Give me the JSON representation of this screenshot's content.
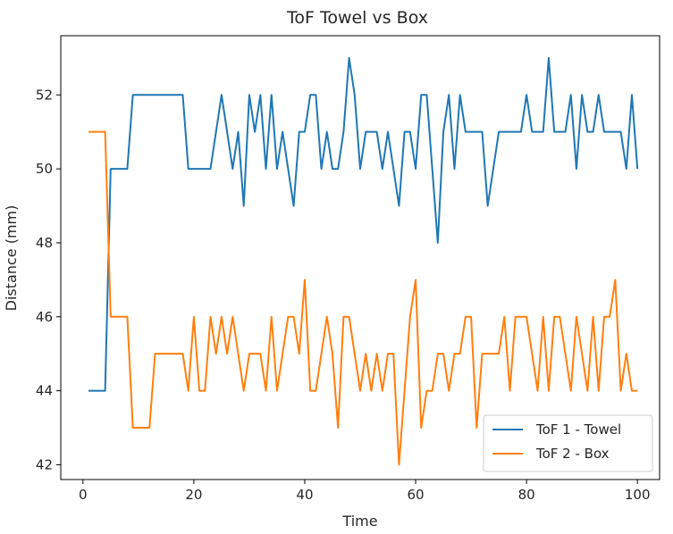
{
  "chart_data": {
    "type": "line",
    "title": "ToF Towel vs Box",
    "xlabel": "Time",
    "ylabel": "Distance (mm)",
    "xlim": [
      -4,
      104
    ],
    "ylim": [
      41.6,
      53.6
    ],
    "xticks": [
      0,
      20,
      40,
      60,
      80,
      100
    ],
    "yticks": [
      42,
      44,
      46,
      48,
      50,
      52
    ],
    "grid": false,
    "legend_position": "lower-right",
    "x": [
      1,
      2,
      3,
      4,
      5,
      6,
      7,
      8,
      9,
      10,
      11,
      12,
      13,
      14,
      15,
      16,
      17,
      18,
      19,
      20,
      21,
      22,
      23,
      24,
      25,
      26,
      27,
      28,
      29,
      30,
      31,
      32,
      33,
      34,
      35,
      36,
      37,
      38,
      39,
      40,
      41,
      42,
      43,
      44,
      45,
      46,
      47,
      48,
      49,
      50,
      51,
      52,
      53,
      54,
      55,
      56,
      57,
      58,
      59,
      60,
      61,
      62,
      63,
      64,
      65,
      66,
      67,
      68,
      69,
      70,
      71,
      72,
      73,
      74,
      75,
      76,
      77,
      78,
      79,
      80,
      81,
      82,
      83,
      84,
      85,
      86,
      87,
      88,
      89,
      90,
      91,
      92,
      93,
      94,
      95,
      96,
      97,
      98,
      99,
      100
    ],
    "series": [
      {
        "name": "ToF 1 - Towel",
        "color": "#1f77b4",
        "values": [
          44,
          44,
          44,
          44,
          50,
          50,
          50,
          50,
          52,
          52,
          52,
          52,
          52,
          52,
          52,
          52,
          52,
          52,
          50,
          50,
          50,
          50,
          50,
          51,
          52,
          51,
          50,
          51,
          49,
          52,
          51,
          52,
          50,
          52,
          50,
          51,
          50,
          49,
          51,
          51,
          52,
          52,
          50,
          51,
          50,
          50,
          51,
          53,
          52,
          50,
          51,
          51,
          51,
          50,
          51,
          50,
          49,
          51,
          51,
          50,
          52,
          52,
          50,
          48,
          51,
          52,
          50,
          52,
          51,
          51,
          51,
          51,
          49,
          50,
          51,
          51,
          51,
          51,
          51,
          52,
          51,
          51,
          51,
          53,
          51,
          51,
          51,
          52,
          50,
          52,
          51,
          51,
          52,
          51,
          51,
          51,
          51,
          50,
          52,
          50
        ]
      },
      {
        "name": "ToF 2 - Box",
        "color": "#ff7f0e",
        "values": [
          51,
          51,
          51,
          51,
          46,
          46,
          46,
          46,
          43,
          43,
          43,
          43,
          45,
          45,
          45,
          45,
          45,
          45,
          44,
          46,
          44,
          44,
          46,
          45,
          46,
          45,
          46,
          45,
          44,
          45,
          45,
          45,
          44,
          46,
          44,
          45,
          46,
          46,
          45,
          47,
          44,
          44,
          45,
          46,
          45,
          43,
          46,
          46,
          45,
          44,
          45,
          44,
          45,
          44,
          45,
          45,
          42,
          44,
          46,
          47,
          43,
          44,
          44,
          45,
          45,
          44,
          45,
          45,
          46,
          46,
          43,
          45,
          45,
          45,
          45,
          46,
          44,
          46,
          46,
          46,
          45,
          44,
          46,
          44,
          46,
          46,
          45,
          44,
          46,
          45,
          44,
          46,
          44,
          46,
          46,
          47,
          44,
          45,
          44,
          44
        ]
      }
    ]
  }
}
